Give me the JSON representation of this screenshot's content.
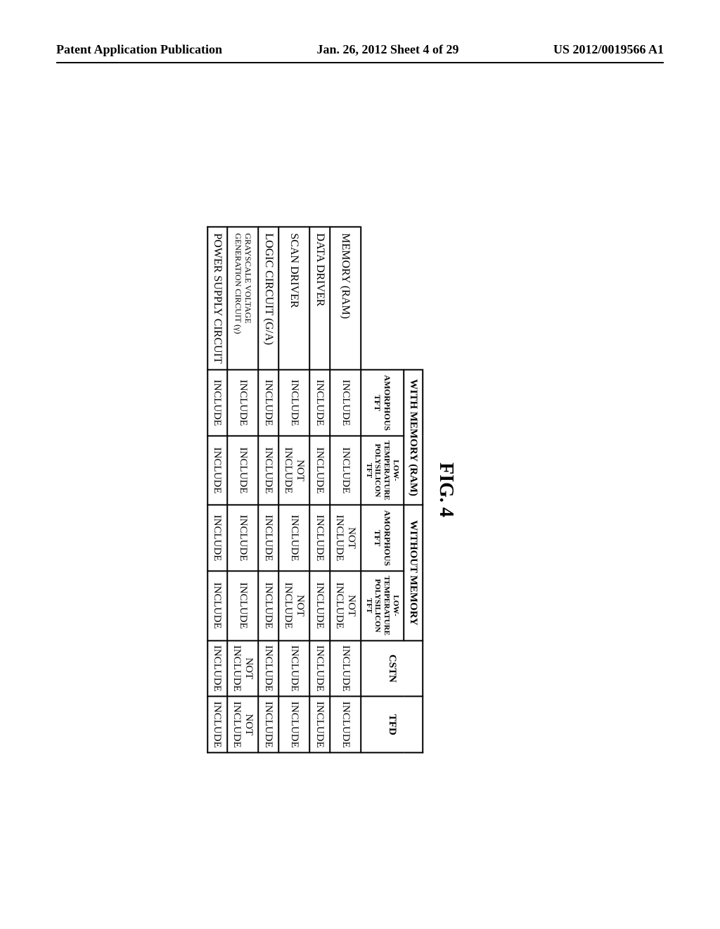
{
  "header": {
    "left": "Patent Application Publication",
    "center": "Jan. 26, 2012  Sheet 4 of 29",
    "right": "US 2012/0019566 A1"
  },
  "figure": {
    "label": "FIG. 4",
    "group_headers": {
      "with_memory": "WITH MEMORY (RAM)",
      "without_memory": "WITHOUT MEMORY"
    },
    "sub_headers": {
      "amorphous_tft": "AMORPHOUS\nTFT",
      "low_temp_poly_tft": "LOW-\nTEMPERATURE\nPOLYSILICON TFT",
      "cstn": "CSTN",
      "tfd": "TFD"
    },
    "rows": [
      {
        "label": "MEMORY (RAM)",
        "cells": [
          "INCLUDE",
          "INCLUDE",
          "NOT\nINCLUDE",
          "NOT\nINCLUDE",
          "INCLUDE",
          "INCLUDE"
        ]
      },
      {
        "label": "DATA DRIVER",
        "cells": [
          "INCLUDE",
          "INCLUDE",
          "INCLUDE",
          "INCLUDE",
          "INCLUDE",
          "INCLUDE"
        ]
      },
      {
        "label": "SCAN DRIVER",
        "cells": [
          "INCLUDE",
          "NOT\nINCLUDE",
          "INCLUDE",
          "NOT\nINCLUDE",
          "INCLUDE",
          "INCLUDE"
        ]
      },
      {
        "label": "LOGIC CIRCUIT (G/A)",
        "cells": [
          "INCLUDE",
          "INCLUDE",
          "INCLUDE",
          "INCLUDE",
          "INCLUDE",
          "INCLUDE"
        ]
      },
      {
        "label": "GRAYSCALE VOLTAGE\nGENERATION CIRCUIT (γ)",
        "cells": [
          "INCLUDE",
          "INCLUDE",
          "INCLUDE",
          "INCLUDE",
          "NOT\nINCLUDE",
          "NOT\nINCLUDE"
        ]
      },
      {
        "label": "POWER SUPPLY CIRCUIT",
        "cells": [
          "INCLUDE",
          "INCLUDE",
          "INCLUDE",
          "INCLUDE",
          "INCLUDE",
          "INCLUDE"
        ]
      }
    ]
  }
}
